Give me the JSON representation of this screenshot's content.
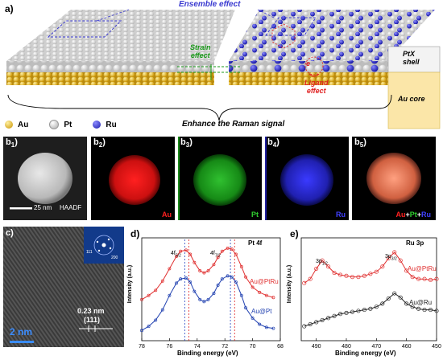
{
  "panel_a": {
    "label": "a)",
    "ensemble_effect": "Ensemble effect",
    "strain_effect_line1": "Strain",
    "strain_effect_line2": "effect",
    "ligand_effect_line1": "Ligand",
    "ligand_effect_line2": "effect",
    "ptx_shell_line1": "PtX",
    "ptx_shell_line2": "shell",
    "au_core": "Au core",
    "electron_symbol": "e",
    "legend": [
      {
        "label": "Au",
        "color": "#e2b11d"
      },
      {
        "label": "Pt",
        "color": "#f2f2f2"
      },
      {
        "label": "Ru",
        "color": "#2d2dd6"
      }
    ],
    "caption": "Enhance the Raman signal",
    "colors": {
      "au": "#e2b11d",
      "pt": "#f2f2f2",
      "ru": "#2d2dd6",
      "ensemble": "#3a3ad0",
      "strain": "#1a9a1a",
      "ligand": "#e02020"
    }
  },
  "panel_b": {
    "tiles": [
      {
        "label": "b",
        "sub": "1",
        "suffix": ")",
        "text": "HAADF",
        "scale": "25 nm"
      },
      {
        "label": "b",
        "sub": "2",
        "suffix": ")",
        "text": "Au",
        "color": "#e01010"
      },
      {
        "label": "b",
        "sub": "3",
        "suffix": ")",
        "text": "Pt",
        "color": "#20c020"
      },
      {
        "label": "b",
        "sub": "4",
        "suffix": ")",
        "text": "Ru",
        "color": "#3030ff"
      },
      {
        "label": "b",
        "sub": "5",
        "suffix": ")",
        "composite": [
          "Au",
          "+",
          "Pt",
          "+",
          "Ru"
        ]
      }
    ]
  },
  "panel_c": {
    "label": "c)",
    "spacing": "0.23 nm",
    "plane": "(111)",
    "scale": "2  nm",
    "fft_labels": [
      "111",
      "200"
    ]
  },
  "chart_data": [
    {
      "panel": "d)",
      "type": "line",
      "title": "Pt 4f",
      "xlabel": "Binding energy (eV)",
      "ylabel": "Intensity (a.u.)",
      "xlim": [
        78,
        68
      ],
      "xticks": [
        78,
        76,
        74,
        72,
        70,
        68
      ],
      "peak_labels": [
        {
          "text": "4f",
          "sub": "5/2",
          "x": 75
        },
        {
          "text": "4f",
          "sub": "7/2",
          "x": 71.6
        }
      ],
      "reference_lines": [
        {
          "x": 74.9,
          "color": "#2040c0"
        },
        {
          "x": 74.6,
          "color": "#e02020"
        },
        {
          "x": 71.6,
          "color": "#2040c0"
        },
        {
          "x": 71.3,
          "color": "#e02020"
        }
      ],
      "series": [
        {
          "name": "Au@PtRu",
          "color": "#e03030",
          "x": [
            78,
            77.5,
            77,
            76.5,
            76,
            75.5,
            75.2,
            74.8,
            74.5,
            74.2,
            73.8,
            73.5,
            73.2,
            72.8,
            72.5,
            72.2,
            71.8,
            71.5,
            71.2,
            70.8,
            70.5,
            70,
            69.5,
            69,
            68.5
          ],
          "y": [
            0.4,
            0.44,
            0.49,
            0.58,
            0.7,
            0.82,
            0.87,
            0.88,
            0.84,
            0.76,
            0.68,
            0.66,
            0.68,
            0.74,
            0.81,
            0.87,
            0.9,
            0.89,
            0.84,
            0.72,
            0.62,
            0.52,
            0.47,
            0.44,
            0.42
          ]
        },
        {
          "name": "Au@Pt",
          "color": "#2040b0",
          "x": [
            78,
            77.5,
            77,
            76.5,
            76,
            75.5,
            75.2,
            74.8,
            74.5,
            74.2,
            73.8,
            73.5,
            73.2,
            72.8,
            72.5,
            72.2,
            71.8,
            71.5,
            71.2,
            70.8,
            70.5,
            70,
            69.5,
            69,
            68.5
          ],
          "y": [
            0.1,
            0.14,
            0.2,
            0.3,
            0.44,
            0.56,
            0.6,
            0.61,
            0.57,
            0.48,
            0.4,
            0.38,
            0.4,
            0.46,
            0.54,
            0.6,
            0.63,
            0.62,
            0.57,
            0.44,
            0.32,
            0.22,
            0.16,
            0.13,
            0.12
          ]
        }
      ]
    },
    {
      "panel": "e)",
      "type": "line",
      "title": "Ru 3p",
      "xlabel": "Binding energy (eV)",
      "ylabel": "Intensity (a.u.)",
      "xlim": [
        495,
        450
      ],
      "xticks": [
        490,
        480,
        470,
        460,
        450
      ],
      "peak_labels": [
        {
          "text": "3p",
          "sub": "1/2",
          "x": 490
        },
        {
          "text": "3p",
          "sub": "3/2",
          "x": 465
        }
      ],
      "series": [
        {
          "name": "Au@PtRu",
          "color": "#e03030",
          "x": [
            494,
            492,
            490,
            488,
            486,
            484,
            482,
            480,
            478,
            476,
            474,
            472,
            470,
            468,
            466,
            464,
            462,
            460,
            458,
            456,
            454,
            452,
            450
          ],
          "y": [
            0.56,
            0.6,
            0.7,
            0.78,
            0.72,
            0.66,
            0.64,
            0.63,
            0.62,
            0.62,
            0.63,
            0.65,
            0.67,
            0.72,
            0.8,
            0.86,
            0.78,
            0.68,
            0.62,
            0.6,
            0.6,
            0.59,
            0.6
          ]
        },
        {
          "name": "Au@Ru",
          "color": "#222222",
          "x": [
            494,
            492,
            490,
            488,
            486,
            484,
            482,
            480,
            478,
            476,
            474,
            472,
            470,
            468,
            466,
            464,
            462,
            460,
            458,
            456,
            454,
            452,
            450
          ],
          "y": [
            0.14,
            0.16,
            0.18,
            0.2,
            0.22,
            0.24,
            0.26,
            0.27,
            0.28,
            0.29,
            0.3,
            0.31,
            0.33,
            0.36,
            0.41,
            0.46,
            0.42,
            0.36,
            0.33,
            0.31,
            0.3,
            0.3,
            0.29
          ]
        }
      ]
    }
  ]
}
